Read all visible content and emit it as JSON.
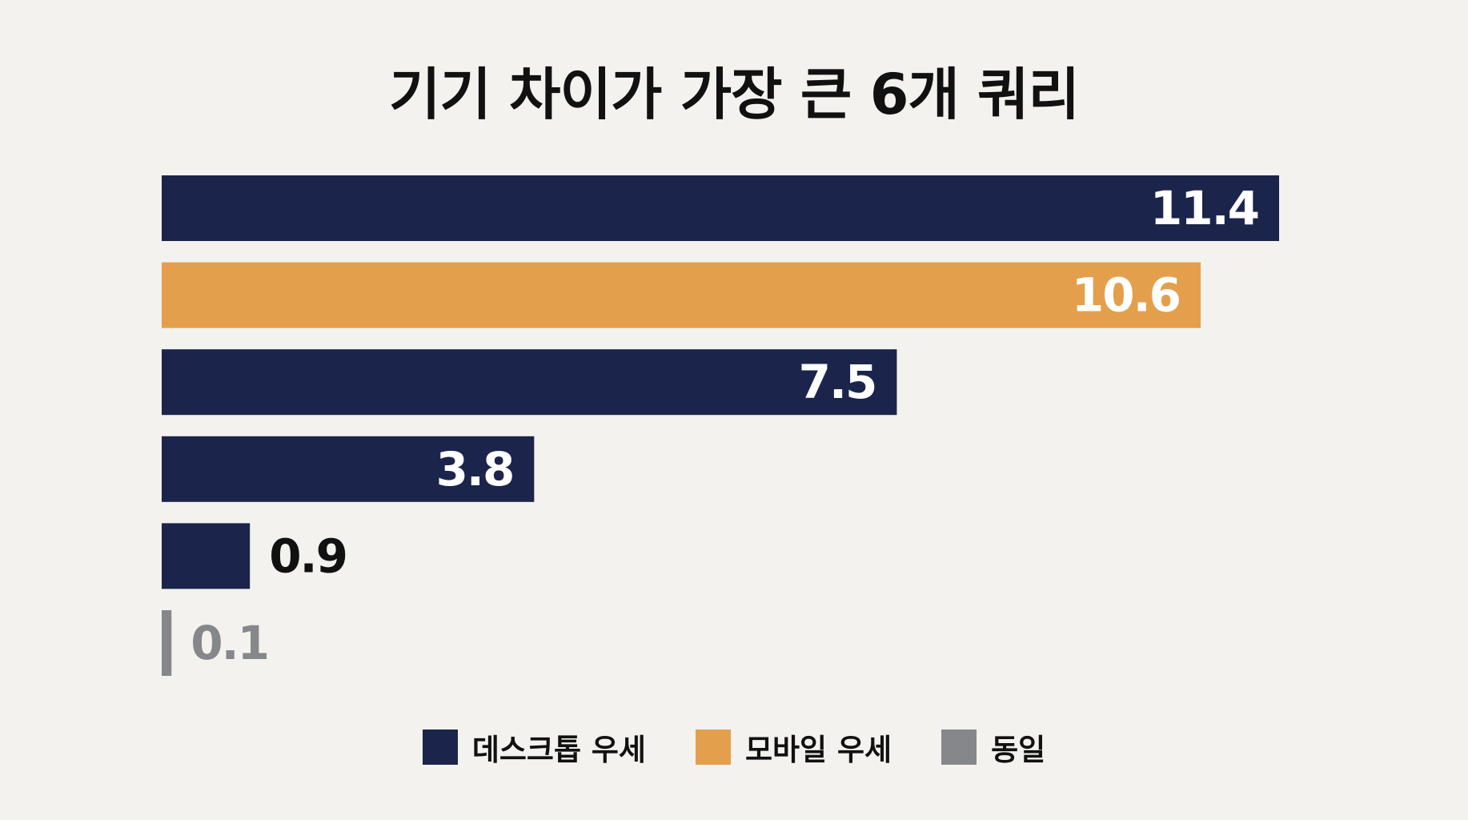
{
  "chart_data": {
    "type": "bar",
    "orientation": "horizontal",
    "title": "기기 차이가 가장 큰 6개 쿼리",
    "xlabel": "",
    "ylabel": "",
    "grid": false,
    "legend_position": "bottom",
    "xlim": [
      0,
      11.4
    ],
    "bars": [
      {
        "value": 11.4,
        "label": "11.4",
        "group": "desktop"
      },
      {
        "value": 10.6,
        "label": "10.6",
        "group": "mobile"
      },
      {
        "value": 7.5,
        "label": "7.5",
        "group": "desktop"
      },
      {
        "value": 3.8,
        "label": "3.8",
        "group": "desktop"
      },
      {
        "value": 0.9,
        "label": "0.9",
        "group": "desktop"
      },
      {
        "value": 0.1,
        "label": "0.1",
        "group": "same"
      }
    ],
    "legend": [
      {
        "key": "desktop",
        "label": "데스크톱 우세",
        "color": "#1b254b"
      },
      {
        "key": "mobile",
        "label": "모바일 우세",
        "color": "#e49f4d"
      },
      {
        "key": "same",
        "label": "동일",
        "color": "#85878b"
      }
    ]
  }
}
